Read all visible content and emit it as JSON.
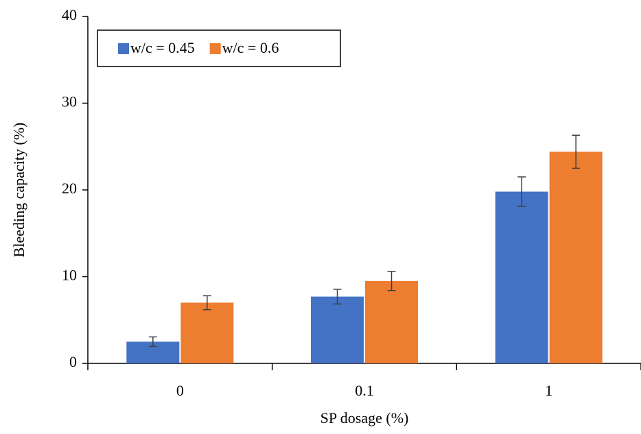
{
  "chart_data": {
    "type": "bar",
    "x_label": "SP dosage (%)",
    "y_label": "Bleeding capacity (%)",
    "categories": [
      "0",
      "0.1",
      "1"
    ],
    "series": [
      {
        "name": "w/c = 0.45",
        "color": "#4472c4",
        "values": [
          2.5,
          7.7,
          19.8
        ],
        "errors": [
          0.55,
          0.85,
          1.7
        ]
      },
      {
        "name": "w/c = 0.6",
        "color": "#ed7d31",
        "values": [
          7.0,
          9.5,
          24.4
        ],
        "errors": [
          0.8,
          1.1,
          1.9
        ]
      }
    ],
    "ylim": [
      0,
      40
    ],
    "yticks": [
      0,
      10,
      20,
      30,
      40
    ],
    "legend": "upper left"
  }
}
